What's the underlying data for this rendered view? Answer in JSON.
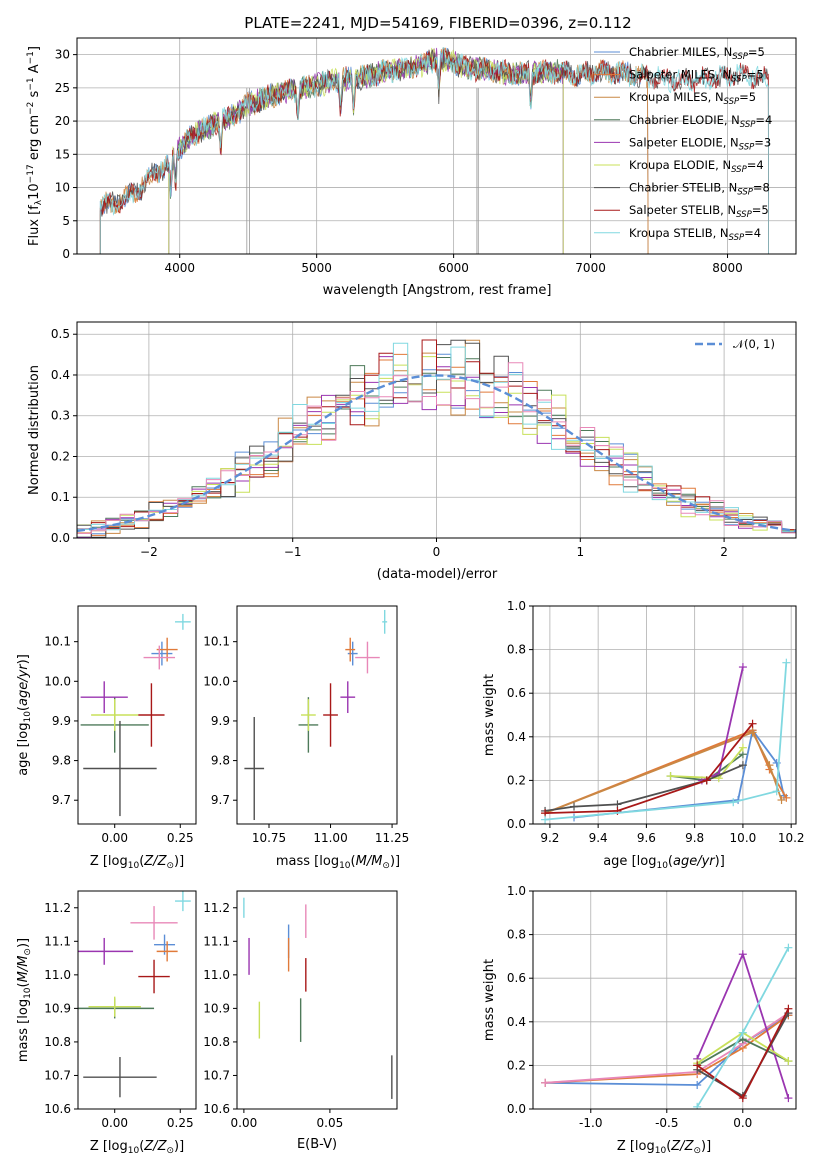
{
  "colors": {
    "Chabrier MILES": "#5b8ed6",
    "Salpeter MILES": "#e07a3a",
    "Kroupa MILES": "#c98845",
    "Chabrier ELODIE": "#4e7a5a",
    "Salpeter ELODIE": "#9a35b0",
    "Kroupa ELODIE": "#c8e05a",
    "Chabrier STELIB": "#505050",
    "Salpeter STELIB": "#a81818",
    "Kroupa STELIB": "#80d8e0",
    "Kroupa MILES err": "#e888b8",
    "normal": "#5b8ed6"
  },
  "chart_data": [
    {
      "id": "spectrum",
      "type": "line",
      "title": "PLATE=2241, MJD=54169, FIBERID=0396, z=0.112",
      "xlabel": "wavelength [Angstrom, rest frame]",
      "ylabel": "Flux [fλ10⁻¹⁷ erg cm⁻² s⁻¹ A⁻¹]",
      "xlim": [
        3250,
        8500
      ],
      "ylim": [
        0,
        32.5
      ],
      "xticks": [
        4000,
        5000,
        6000,
        7000,
        8000
      ],
      "yticks": [
        0,
        5,
        10,
        15,
        20,
        25,
        30
      ],
      "grid": true,
      "legend": "top-right",
      "continuum": {
        "x": [
          3400,
          3500,
          3600,
          3700,
          3800,
          3900,
          4000,
          4100,
          4200,
          4300,
          4400,
          4500,
          4700,
          4900,
          5100,
          5300,
          5500,
          5700,
          5900,
          6100,
          6300,
          6500,
          6700,
          6900,
          7100,
          7300,
          7500,
          7700,
          7900,
          8100,
          8300
        ],
        "y": [
          7.5,
          7.5,
          8.5,
          9.5,
          12.0,
          13.0,
          16.0,
          18.0,
          19.0,
          20.0,
          21.0,
          22.5,
          24.0,
          25.0,
          26.0,
          26.5,
          27.5,
          28.0,
          29.5,
          28.0,
          27.5,
          27.0,
          27.5,
          27.0,
          27.5,
          27.0,
          26.5,
          26.0,
          26.5,
          27.0,
          26.5
        ]
      },
      "absorption_lines": [
        3935,
        3970,
        4300,
        4862,
        5175,
        5270,
        5892,
        6563
      ],
      "series": [
        {
          "name": "Chabrier MILES, N_SSP=5",
          "legend": "Chabrier MILES, N",
          "sub": "SSP",
          "post": "=5",
          "xmin": 3420,
          "xmax": 7420
        },
        {
          "name": "Salpeter MILES, N_SSP=5",
          "legend": "Salpeter MILES, N",
          "sub": "SSP",
          "post": "=5",
          "xmin": 3420,
          "xmax": 7420
        },
        {
          "name": "Kroupa MILES, N_SSP=5",
          "legend": "Kroupa MILES, N",
          "sub": "SSP",
          "post": "=5",
          "xmin": 3420,
          "xmax": 7420
        },
        {
          "name": "Chabrier ELODIE, N_SSP=4",
          "legend": "Chabrier ELODIE, N",
          "sub": "SSP",
          "post": "=4",
          "xmin": 3920,
          "xmax": 6800
        },
        {
          "name": "Salpeter ELODIE, N_SSP=3",
          "legend": "Salpeter ELODIE, N",
          "sub": "SSP",
          "post": "=3",
          "xmin": 3920,
          "xmax": 6800
        },
        {
          "name": "Kroupa ELODIE, N_SSP=4",
          "legend": "Kroupa ELODIE, N",
          "sub": "SSP",
          "post": "=4",
          "xmin": 3920,
          "xmax": 6800
        },
        {
          "name": "Chabrier STELIB, N_SSP=8",
          "legend": "Chabrier STELIB, N",
          "sub": "SSP",
          "post": "=8",
          "xmin": 3420,
          "xmax": 8300
        },
        {
          "name": "Salpeter STELIB, N_SSP=5",
          "legend": "Salpeter STELIB, N",
          "sub": "SSP",
          "post": "=5",
          "xmin": 3420,
          "xmax": 8300
        },
        {
          "name": "Kroupa STELIB, N_SSP=4",
          "legend": "Kroupa STELIB, N",
          "sub": "SSP",
          "post": "=4",
          "xmin": 3420,
          "xmax": 8300
        }
      ]
    },
    {
      "id": "residuals",
      "type": "area",
      "xlabel": "(data-model)/error",
      "ylabel": "Normed distribution",
      "xlim": [
        -2.5,
        2.5
      ],
      "ylim": [
        0,
        0.53
      ],
      "xticks": [
        -2,
        -1,
        0,
        1,
        2
      ],
      "yticks": [
        0.0,
        0.1,
        0.2,
        0.3,
        0.4,
        0.5
      ],
      "grid": true,
      "legend": "top-right",
      "legend_label": "𝒩(0, 1)",
      "bin_width": 0.1,
      "bin_start": -2.5,
      "n_bins": 50
    },
    {
      "id": "age-vs-Z",
      "type": "scatter",
      "xlabel": "Z [log₁₀(Z/Z⊙)]",
      "ylabel": "age  [log₁₀(age/yr)]",
      "xlim": [
        -0.14,
        0.31
      ],
      "ylim": [
        9.64,
        10.19
      ],
      "xticks": [
        0.0,
        0.25
      ],
      "yticks": [
        9.7,
        9.8,
        9.9,
        10.0,
        10.1
      ],
      "points": [
        {
          "series": "Chabrier MILES",
          "x": 0.18,
          "y": 10.07,
          "xerr": 0.04,
          "yerr": 0.03
        },
        {
          "series": "Salpeter MILES",
          "x": 0.2,
          "y": 10.08,
          "xerr": 0.04,
          "yerr": 0.03
        },
        {
          "series": "Kroupa MILES err",
          "x": 0.17,
          "y": 10.06,
          "xerr": 0.06,
          "yerr": 0.03
        },
        {
          "series": "Chabrier ELODIE",
          "x": 0.0,
          "y": 9.89,
          "xerr": 0.13,
          "yerr": 0.07
        },
        {
          "series": "Salpeter ELODIE",
          "x": -0.04,
          "y": 9.96,
          "xerr": 0.09,
          "yerr": 0.04
        },
        {
          "series": "Kroupa ELODIE",
          "x": 0.0,
          "y": 9.915,
          "xerr": 0.09,
          "yerr": 0.04
        },
        {
          "series": "Chabrier STELIB",
          "x": 0.02,
          "y": 9.78,
          "xerr": 0.14,
          "yerr": 0.12
        },
        {
          "series": "Salpeter STELIB",
          "x": 0.14,
          "y": 9.915,
          "xerr": 0.05,
          "yerr": 0.08
        },
        {
          "series": "Kroupa STELIB",
          "x": 0.26,
          "y": 10.15,
          "xerr": 0.03,
          "yerr": 0.02
        }
      ]
    },
    {
      "id": "age-vs-mass",
      "type": "scatter",
      "xlabel": "mass [log₁₀(M/M⊙)]",
      "ylabel": "",
      "xlim": [
        10.62,
        11.27
      ],
      "ylim": [
        9.64,
        10.19
      ],
      "xticks": [
        10.75,
        11.0,
        11.25
      ],
      "yticks": [
        9.7,
        9.8,
        9.9,
        10.0,
        10.1
      ],
      "points": [
        {
          "series": "Chabrier MILES",
          "x": 11.09,
          "y": 10.07,
          "xerr": 0.02,
          "yerr": 0.03
        },
        {
          "series": "Salpeter MILES",
          "x": 11.08,
          "y": 10.08,
          "xerr": 0.02,
          "yerr": 0.03
        },
        {
          "series": "Kroupa MILES err",
          "x": 11.15,
          "y": 10.06,
          "xerr": 0.05,
          "yerr": 0.04
        },
        {
          "series": "Chabrier ELODIE",
          "x": 10.91,
          "y": 9.89,
          "xerr": 0.04,
          "yerr": 0.07
        },
        {
          "series": "Salpeter ELODIE",
          "x": 11.07,
          "y": 9.96,
          "xerr": 0.03,
          "yerr": 0.04
        },
        {
          "series": "Kroupa ELODIE",
          "x": 10.91,
          "y": 9.915,
          "xerr": 0.03,
          "yerr": 0.04
        },
        {
          "series": "Chabrier STELIB",
          "x": 10.69,
          "y": 9.78,
          "xerr": 0.04,
          "yerr": 0.13
        },
        {
          "series": "Salpeter STELIB",
          "x": 11.0,
          "y": 9.915,
          "xerr": 0.03,
          "yerr": 0.08
        },
        {
          "series": "Kroupa STELIB",
          "x": 11.22,
          "y": 10.15,
          "xerr": 0.01,
          "yerr": 0.03
        }
      ]
    },
    {
      "id": "weights-vs-age",
      "type": "line",
      "xlabel": "age  [log₁₀(age/yr)]",
      "ylabel": "mass weight",
      "xlim": [
        9.13,
        10.22
      ],
      "ylim": [
        0,
        1
      ],
      "xticks": [
        9.2,
        9.4,
        9.6,
        9.8,
        10.0,
        10.2
      ],
      "yticks": [
        0.0,
        0.2,
        0.4,
        0.6,
        0.8,
        1.0
      ],
      "grid": true,
      "series": [
        {
          "name": "Chabrier MILES",
          "x": [
            9.3,
            9.98,
            10.04,
            10.14,
            10.17
          ],
          "y": [
            0.03,
            0.11,
            0.43,
            0.28,
            0.13
          ]
        },
        {
          "name": "Salpeter MILES",
          "x": [
            9.18,
            10.04,
            10.11,
            10.18
          ],
          "y": [
            0.05,
            0.43,
            0.25,
            0.12
          ]
        },
        {
          "name": "Kroupa MILES",
          "x": [
            9.18,
            10.04,
            10.11,
            10.16
          ],
          "y": [
            0.05,
            0.42,
            0.27,
            0.11
          ]
        },
        {
          "name": "Chabrier ELODIE",
          "x": [
            9.7,
            9.85,
            10.0
          ],
          "y": [
            0.22,
            0.2,
            0.32
          ]
        },
        {
          "name": "Salpeter ELODIE",
          "x": [
            9.83,
            9.9,
            10.0
          ],
          "y": [
            0.2,
            0.23,
            0.72
          ]
        },
        {
          "name": "Kroupa ELODIE",
          "x": [
            9.7,
            9.9,
            10.0
          ],
          "y": [
            0.22,
            0.21,
            0.35
          ]
        },
        {
          "name": "Chabrier STELIB",
          "x": [
            9.18,
            9.3,
            9.48,
            9.85,
            10.0
          ],
          "y": [
            0.06,
            0.08,
            0.09,
            0.2,
            0.27
          ]
        },
        {
          "name": "Salpeter STELIB",
          "x": [
            9.18,
            9.48,
            9.85,
            10.04
          ],
          "y": [
            0.05,
            0.06,
            0.2,
            0.46
          ]
        },
        {
          "name": "Kroupa STELIB",
          "x": [
            9.18,
            9.96,
            10.14,
            10.18
          ],
          "y": [
            0.02,
            0.1,
            0.15,
            0.74
          ]
        }
      ]
    },
    {
      "id": "mass-vs-Z",
      "type": "scatter",
      "xlabel": "Z [log₁₀(Z/Z⊙)]",
      "ylabel": "mass [log₁₀(M/M⊙)]",
      "xlim": [
        -0.14,
        0.31
      ],
      "ylim": [
        10.6,
        11.25
      ],
      "xticks": [
        0.0,
        0.25
      ],
      "yticks": [
        10.6,
        10.7,
        10.8,
        10.9,
        11.0,
        11.1,
        11.2
      ],
      "points": [
        {
          "series": "Chabrier MILES",
          "x": 0.19,
          "y": 11.09,
          "xerr": 0.04,
          "yerr": 0.03
        },
        {
          "series": "Salpeter MILES",
          "x": 0.2,
          "y": 11.07,
          "xerr": 0.04,
          "yerr": 0.03
        },
        {
          "series": "Kroupa MILES err",
          "x": 0.15,
          "y": 11.155,
          "xerr": 0.09,
          "yerr": 0.05
        },
        {
          "series": "Chabrier ELODIE",
          "x": 0.0,
          "y": 10.9,
          "xerr": 0.15,
          "yerr": 0.03
        },
        {
          "series": "Salpeter ELODIE",
          "x": -0.04,
          "y": 11.07,
          "xerr": 0.11,
          "yerr": 0.04
        },
        {
          "series": "Kroupa ELODIE",
          "x": 0.0,
          "y": 10.905,
          "xerr": 0.1,
          "yerr": 0.03
        },
        {
          "series": "Chabrier STELIB",
          "x": 0.02,
          "y": 10.695,
          "xerr": 0.14,
          "yerr": 0.06
        },
        {
          "series": "Salpeter STELIB",
          "x": 0.15,
          "y": 10.995,
          "xerr": 0.06,
          "yerr": 0.05
        },
        {
          "series": "Kroupa STELIB",
          "x": 0.26,
          "y": 11.22,
          "xerr": 0.03,
          "yerr": 0.03
        }
      ]
    },
    {
      "id": "mass-vs-EBV",
      "type": "scatter",
      "xlabel": "E(B-V)",
      "ylabel": "",
      "xlim": [
        -0.004,
        0.089
      ],
      "ylim": [
        10.6,
        11.25
      ],
      "xticks": [
        0.0,
        0.05
      ],
      "yticks": [
        10.6,
        10.7,
        10.8,
        10.9,
        11.0,
        11.1,
        11.2
      ],
      "points": [
        {
          "series": "Chabrier MILES",
          "x": 0.026,
          "y": 11.1,
          "xerr": 0,
          "yerr": 0.05
        },
        {
          "series": "Salpeter MILES",
          "x": 0.026,
          "y": 11.06,
          "xerr": 0,
          "yerr": 0.05
        },
        {
          "series": "Kroupa MILES err",
          "x": 0.036,
          "y": 11.16,
          "xerr": 0,
          "yerr": 0.05
        },
        {
          "series": "Chabrier ELODIE",
          "x": 0.033,
          "y": 10.865,
          "xerr": 0,
          "yerr": 0.065
        },
        {
          "series": "Salpeter ELODIE",
          "x": 0.003,
          "y": 11.055,
          "xerr": 0,
          "yerr": 0.055
        },
        {
          "series": "Kroupa ELODIE",
          "x": 0.009,
          "y": 10.865,
          "xerr": 0,
          "yerr": 0.055
        },
        {
          "series": "Chabrier STELIB",
          "x": 0.086,
          "y": 10.695,
          "xerr": 0,
          "yerr": 0.065
        },
        {
          "series": "Salpeter STELIB",
          "x": 0.036,
          "y": 11.0,
          "xerr": 0,
          "yerr": 0.05
        },
        {
          "series": "Kroupa STELIB",
          "x": 0.0,
          "y": 11.2,
          "xerr": 0,
          "yerr": 0.03
        }
      ]
    },
    {
      "id": "weights-vs-Z",
      "type": "line",
      "xlabel": "Z [log₁₀(Z/Z⊙)]",
      "ylabel": "mass weight",
      "xlim": [
        -1.38,
        0.35
      ],
      "ylim": [
        0,
        1
      ],
      "xticks": [
        -1.0,
        -0.5,
        0.0
      ],
      "yticks": [
        0.0,
        0.2,
        0.4,
        0.6,
        0.8,
        1.0
      ],
      "grid": true,
      "series": [
        {
          "name": "Chabrier MILES",
          "x": [
            -1.3,
            -0.3,
            0.0,
            0.3
          ],
          "y": [
            0.12,
            0.11,
            0.3,
            0.43
          ]
        },
        {
          "name": "Salpeter MILES",
          "x": [
            -1.3,
            -0.3,
            0.0,
            0.3
          ],
          "y": [
            0.12,
            0.16,
            0.28,
            0.43
          ]
        },
        {
          "name": "Kroupa MILES err",
          "x": [
            -1.3,
            -0.3,
            0.0,
            0.3
          ],
          "y": [
            0.12,
            0.17,
            0.3,
            0.44
          ]
        },
        {
          "name": "Chabrier ELODIE",
          "x": [
            -0.3,
            0.0,
            0.3
          ],
          "y": [
            0.2,
            0.32,
            0.22
          ]
        },
        {
          "name": "Salpeter ELODIE",
          "x": [
            -0.3,
            0.0,
            0.3
          ],
          "y": [
            0.23,
            0.71,
            0.05
          ]
        },
        {
          "name": "Kroupa ELODIE",
          "x": [
            -0.3,
            0.0,
            0.3
          ],
          "y": [
            0.21,
            0.35,
            0.22
          ]
        },
        {
          "name": "Chabrier STELIB",
          "x": [
            -0.3,
            0.0,
            0.3
          ],
          "y": [
            0.18,
            0.06,
            0.44
          ]
        },
        {
          "name": "Salpeter STELIB",
          "x": [
            -0.3,
            0.0,
            0.3
          ],
          "y": [
            0.2,
            0.05,
            0.46
          ]
        },
        {
          "name": "Kroupa STELIB",
          "x": [
            -0.3,
            0.0,
            0.3
          ],
          "y": [
            0.01,
            0.35,
            0.74
          ]
        }
      ]
    }
  ]
}
